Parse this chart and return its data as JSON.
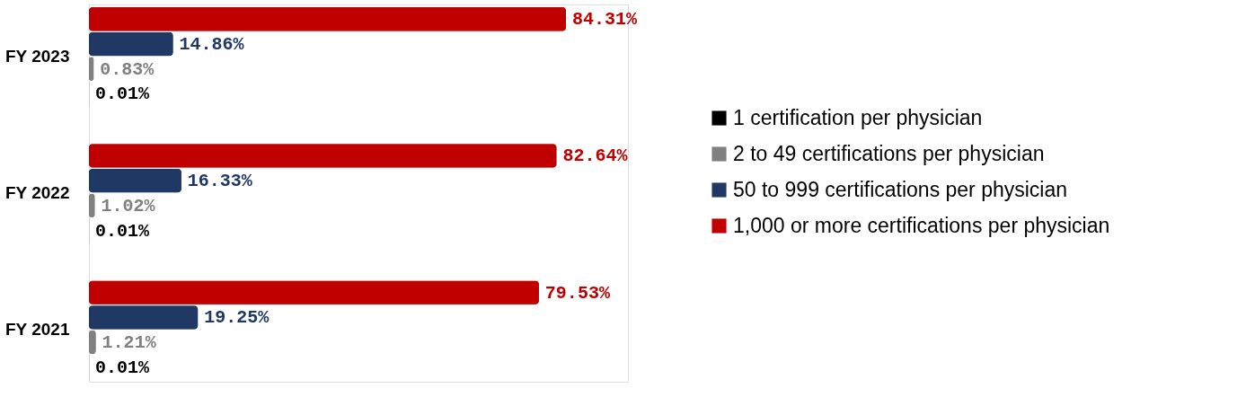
{
  "chart_data": {
    "type": "bar",
    "orientation": "horizontal",
    "categories": [
      "FY 2023",
      "FY 2022",
      "FY 2021"
    ],
    "series": [
      {
        "name": "1 certification per physician",
        "color": "#000000",
        "values": [
          0.01,
          0.01,
          0.01
        ],
        "value_labels": [
          "0.01%",
          "0.01%",
          "0.01%"
        ]
      },
      {
        "name": "2 to 49 certifications per physician",
        "color": "#808080",
        "values": [
          0.83,
          1.02,
          1.21
        ],
        "value_labels": [
          "0.83%",
          "1.02%",
          "1.21%"
        ]
      },
      {
        "name": "50 to 999 certifications per physician",
        "color": "#1f3864",
        "values": [
          14.86,
          16.33,
          19.25
        ],
        "value_labels": [
          "14.86%",
          "16.33%",
          "19.25%"
        ]
      },
      {
        "name": "1,000 or more certifications per physician",
        "color": "#c00000",
        "values": [
          84.31,
          82.64,
          79.53
        ],
        "value_labels": [
          "84.31%",
          "82.64%",
          "79.53%"
        ]
      }
    ],
    "tick_labels": "y",
    "legend": "right",
    "grid": false
  }
}
